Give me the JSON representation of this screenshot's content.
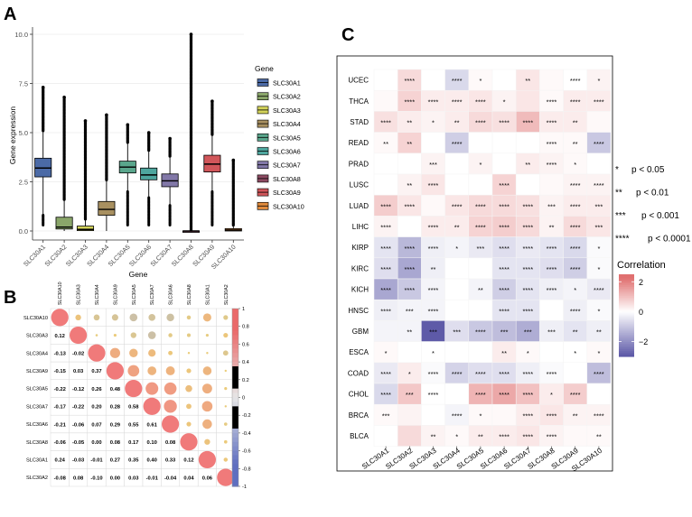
{
  "panels": {
    "a": "A",
    "b": "B",
    "c": "C"
  },
  "chart_data": [
    {
      "panel": "A",
      "type": "box",
      "title": "",
      "xlabel": "Gene",
      "ylabel": "Gene expression",
      "ylim": [
        0,
        10
      ],
      "yticks": [
        0.0,
        2.5,
        5.0,
        7.5,
        10.0
      ],
      "ytick_labels": [
        "0.0",
        "2.5",
        "5.0",
        "7.5",
        "10.0"
      ],
      "categories": [
        "SLC30A1",
        "SLC30A2",
        "SLC30A3",
        "SLC30A4",
        "SLC30A5",
        "SLC30A6",
        "SLC30A7",
        "SLC30A8",
        "SLC30A9",
        "SLC30A10"
      ],
      "colors": [
        "#4b6aa6",
        "#8aa66a",
        "#d3d35a",
        "#a89060",
        "#5aa68c",
        "#4ea69e",
        "#8278a8",
        "#8c4a62",
        "#d1565a",
        "#e08a3c"
      ],
      "boxes": [
        {
          "whisker_low": 0.8,
          "q1": 2.75,
          "median": 3.2,
          "q3": 3.7,
          "whisker_high": 5.1,
          "outlier_max": 7.3
        },
        {
          "whisker_low": 0.0,
          "q1": 0.1,
          "median": 0.2,
          "q3": 0.7,
          "whisker_high": 1.6,
          "outlier_max": 6.8
        },
        {
          "whisker_low": 0.0,
          "q1": 0.02,
          "median": 0.08,
          "q3": 0.25,
          "whisker_high": 0.6,
          "outlier_max": 5.6
        },
        {
          "whisker_low": 0.0,
          "q1": 0.8,
          "median": 1.1,
          "q3": 1.5,
          "whisker_high": 2.6,
          "outlier_max": 5.9
        },
        {
          "whisker_low": 2.0,
          "q1": 2.95,
          "median": 3.25,
          "q3": 3.55,
          "whisker_high": 4.5,
          "outlier_max": 5.4
        },
        {
          "whisker_low": 1.7,
          "q1": 2.6,
          "median": 2.85,
          "q3": 3.2,
          "whisker_high": 4.1,
          "outlier_max": 5.0
        },
        {
          "whisker_low": 1.3,
          "q1": 2.25,
          "median": 2.55,
          "q3": 2.9,
          "whisker_high": 3.8,
          "outlier_max": 4.7
        },
        {
          "whisker_low": 0.0,
          "q1": 0.0,
          "median": 0.0,
          "q3": 0.0,
          "whisker_high": 0.0,
          "outlier_max": 10.0
        },
        {
          "whisker_low": 2.0,
          "q1": 3.0,
          "median": 3.4,
          "q3": 3.85,
          "whisker_high": 4.9,
          "outlier_max": 6.6
        },
        {
          "whisker_low": 0.0,
          "q1": 0.0,
          "median": 0.05,
          "q3": 0.12,
          "whisker_high": 0.3,
          "outlier_max": 3.6
        }
      ],
      "legend": {
        "title": "Gene",
        "placement": "right",
        "labels": [
          "SLC30A1",
          "SLC30A2",
          "SLC30A3",
          "SLC30A4",
          "SLC30A5",
          "SLC30A6",
          "SLC30A7",
          "SLC30A8",
          "SLC30A9",
          "SLC30A10"
        ]
      }
    },
    {
      "panel": "B",
      "type": "heatmap",
      "subtype": "correlation-lower-triangle",
      "genes": [
        "SLC30A10",
        "SLC30A3",
        "SLC30A4",
        "SLC30A9",
        "SLC30A5",
        "SLC30A7",
        "SLC30A6",
        "SLC30A8",
        "SLC30A1",
        "SLC30A2"
      ],
      "lower_values": [
        [],
        [
          "0.12"
        ],
        [
          "-0.13",
          "-0.02"
        ],
        [
          "-0.15",
          "0.03",
          "0.37"
        ],
        [
          "-0.22",
          "-0.12",
          "0.26",
          "0.48"
        ],
        [
          "-0.17",
          "-0.22",
          "0.20",
          "0.28",
          "0.58"
        ],
        [
          "-0.21",
          "-0.06",
          "0.07",
          "0.29",
          "0.55",
          "0.61"
        ],
        [
          "-0.06",
          "-0.05",
          "0.00",
          "0.08",
          "0.17",
          "0.10",
          "0.08"
        ],
        [
          "0.24",
          "-0.03",
          "-0.01",
          "0.27",
          "0.35",
          "0.40",
          "0.33",
          "0.12"
        ],
        [
          "-0.08",
          "0.08",
          "-0.10",
          "0.00",
          "0.03",
          "-0.01",
          "-0.04",
          "0.04",
          "0.06"
        ]
      ],
      "colorbar": {
        "range": [
          -1,
          1
        ],
        "ticks": [
          "1",
          "0.8",
          "0.6",
          "0.4",
          "0.2",
          "0",
          "-0.2",
          "-0.4",
          "-0.6",
          "-0.8",
          "-1"
        ]
      }
    },
    {
      "panel": "C",
      "type": "heatmap",
      "rows": [
        "UCEC",
        "THCA",
        "STAD",
        "READ",
        "PRAD",
        "LUSC",
        "LUAD",
        "LIHC",
        "KIRP",
        "KIRC",
        "KICH",
        "HNSC",
        "GBM",
        "ESCA",
        "COAD",
        "CHOL",
        "BRCA",
        "BLCA"
      ],
      "columns": [
        "SLC30A1",
        "SLC30A2",
        "SLC30A3",
        "SLC30A4",
        "SLC30A5",
        "SLC30A6",
        "SLC30A7",
        "SLC30A8",
        "SLC30A9",
        "SLC30A10"
      ],
      "values": [
        [
          0.0,
          0.6,
          0.0,
          -0.7,
          0.1,
          0.0,
          0.4,
          0.1,
          0.0,
          0.2
        ],
        [
          0.1,
          0.7,
          0.3,
          0.3,
          0.4,
          0.2,
          0.4,
          0.1,
          0.3,
          0.3
        ],
        [
          0.5,
          0.3,
          0.2,
          0.3,
          0.6,
          0.5,
          1.1,
          0.3,
          0.3,
          0.1
        ],
        [
          0.1,
          0.7,
          0.0,
          -0.9,
          0.0,
          0.0,
          0.0,
          0.1,
          0.1,
          -1.0
        ],
        [
          0.0,
          0.0,
          0.2,
          0.0,
          0.2,
          0.0,
          0.3,
          0.2,
          0.1,
          0.0
        ],
        [
          0.0,
          0.2,
          0.4,
          0.0,
          0.0,
          0.7,
          0.0,
          0.1,
          0.2,
          0.2
        ],
        [
          0.8,
          0.4,
          0.1,
          0.4,
          0.6,
          0.6,
          0.5,
          0.2,
          0.3,
          0.3
        ],
        [
          0.2,
          0.0,
          0.3,
          0.3,
          0.7,
          0.8,
          0.6,
          0.2,
          0.6,
          0.4
        ],
        [
          -0.5,
          -1.3,
          -0.3,
          -0.2,
          -0.4,
          -0.6,
          -0.4,
          -0.5,
          -0.7,
          -0.1
        ],
        [
          -0.6,
          -1.6,
          -0.3,
          0.0,
          0.0,
          -0.5,
          -0.5,
          -0.6,
          -0.9,
          -0.1
        ],
        [
          -1.6,
          -1.0,
          -0.2,
          0.0,
          -0.2,
          -0.9,
          -0.5,
          -0.3,
          -0.2,
          -0.4
        ],
        [
          -0.3,
          -0.2,
          -0.2,
          0.0,
          0.0,
          -0.5,
          -0.5,
          0.0,
          -0.3,
          -0.1
        ],
        [
          -0.2,
          -0.2,
          -3.0,
          -0.6,
          -1.0,
          -1.2,
          -1.5,
          -0.3,
          -0.5,
          -0.3
        ],
        [
          0.1,
          0.0,
          0.0,
          0.0,
          0.0,
          0.3,
          0.1,
          0.0,
          0.0,
          0.1
        ],
        [
          -0.4,
          0.3,
          -0.1,
          -0.8,
          -0.6,
          -0.6,
          -0.3,
          -0.1,
          0.0,
          -1.2
        ],
        [
          -0.7,
          0.9,
          0.0,
          0.0,
          1.2,
          1.4,
          1.0,
          0.3,
          0.8,
          0.0
        ],
        [
          0.1,
          0.2,
          0.0,
          -0.2,
          0.1,
          0.1,
          0.3,
          0.4,
          0.2,
          0.2
        ],
        [
          0.0,
          0.6,
          0.2,
          0.1,
          0.3,
          0.3,
          0.4,
          0.2,
          0.1,
          0.1
        ]
      ],
      "stars": [
        [
          "",
          "****",
          "",
          "****",
          "*",
          "",
          "**",
          "",
          "****",
          "*"
        ],
        [
          "",
          "****",
          "****",
          "****",
          "****",
          "*",
          "",
          "****",
          "****",
          "****"
        ],
        [
          "****",
          "**",
          "*",
          "**",
          "****",
          "****",
          "****",
          "****",
          "**",
          ""
        ],
        [
          "**",
          "**",
          "",
          "****",
          "",
          "",
          "",
          "****",
          "**",
          "****"
        ],
        [
          "",
          "",
          "***",
          "",
          "*",
          "",
          "**",
          "****",
          "*",
          ""
        ],
        [
          "",
          "**",
          "****",
          "",
          "",
          "****",
          "",
          "",
          "****",
          "****"
        ],
        [
          "****",
          "****",
          "",
          "****",
          "****",
          "****",
          "****",
          "***",
          "****",
          "***"
        ],
        [
          "****",
          "",
          "****",
          "**",
          "****",
          "****",
          "****",
          "**",
          "****",
          "***"
        ],
        [
          "****",
          "****",
          "****",
          "*",
          "***",
          "****",
          "****",
          "****",
          "****",
          "*"
        ],
        [
          "****",
          "****",
          "**",
          "",
          "",
          "****",
          "****",
          "****",
          "****",
          "*"
        ],
        [
          "****",
          "****",
          "****",
          "",
          "**",
          "****",
          "****",
          "****",
          "*",
          "****"
        ],
        [
          "****",
          "***",
          "****",
          "",
          "",
          "****",
          "****",
          "",
          "****",
          "*"
        ],
        [
          "",
          "**",
          "***",
          "***",
          "****",
          "***",
          "***",
          "***",
          "**",
          "**"
        ],
        [
          "*",
          "",
          "*",
          "",
          "",
          "**",
          "*",
          "",
          "*",
          "*"
        ],
        [
          "****",
          "*",
          "****",
          "****",
          "****",
          "****",
          "****",
          "****",
          "",
          "****"
        ],
        [
          "****",
          "***",
          "****",
          "",
          "****",
          "****",
          "****",
          "*",
          "****",
          ""
        ],
        [
          "***",
          "",
          "",
          "****",
          "*",
          "",
          "****",
          "****",
          "**",
          "****"
        ],
        [
          "",
          "",
          "**",
          "*",
          "**",
          "****",
          "****",
          "****",
          "",
          "**"
        ]
      ],
      "significance_legend": [
        {
          "sym": "*",
          "text": "p < 0.05"
        },
        {
          "sym": "**",
          "text": "p < 0.01"
        },
        {
          "sym": "***",
          "text": "p < 0.001"
        },
        {
          "sym": "****",
          "text": "p < 0.0001"
        }
      ],
      "colorbar": {
        "title": "Correlation",
        "range": [
          -3,
          2.5
        ],
        "ticks": [
          2,
          0,
          -2
        ],
        "tick_labels": [
          "2",
          "0",
          "−2"
        ]
      }
    }
  ]
}
